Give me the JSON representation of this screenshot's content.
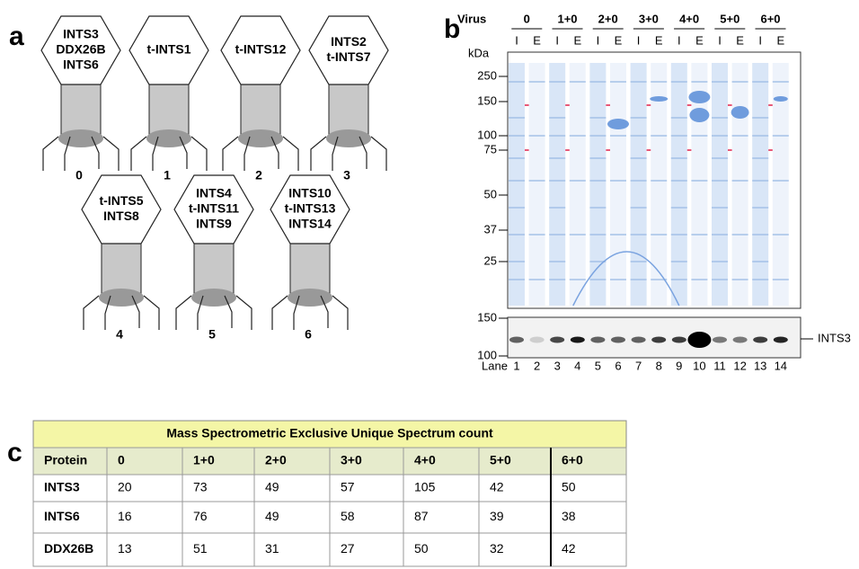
{
  "panel_labels": [
    "a",
    "b",
    "c"
  ],
  "viruses": [
    {
      "lines": [
        "INTS3",
        "DDX26B",
        "INTS6"
      ],
      "number": "0"
    },
    {
      "lines": [
        "t-INTS1"
      ],
      "number": "1"
    },
    {
      "lines": [
        "t-INTS12"
      ],
      "number": "2"
    },
    {
      "lines": [
        "INTS2",
        "t-INTS7"
      ],
      "number": "3"
    },
    {
      "lines": [
        "t-INTS5",
        "INTS8"
      ],
      "number": "4"
    },
    {
      "lines": [
        "INTS4",
        "t-INTS11",
        "INTS9"
      ],
      "number": "5"
    },
    {
      "lines": [
        "INTS10",
        "t-INTS13",
        "INTS14"
      ],
      "number": "6"
    }
  ],
  "gel": {
    "virus_label": "Virus",
    "groups": [
      "0",
      "1+0",
      "2+0",
      "3+0",
      "4+0",
      "5+0",
      "6+0"
    ],
    "lane_types": [
      "I",
      "E"
    ],
    "kda_label": "kDa",
    "markers": [
      "250",
      "150",
      "100",
      "75",
      "50",
      "37",
      "25"
    ],
    "blot_markers": [
      "150",
      "100"
    ],
    "blot_label": "INTS3",
    "lane_label": "Lane",
    "lanes": [
      "1",
      "2",
      "3",
      "4",
      "5",
      "6",
      "7",
      "8",
      "9",
      "10",
      "11",
      "12",
      "13",
      "14"
    ]
  },
  "table": {
    "title": "Mass Spectrometric Exclusive Unique Spectrum count",
    "header": [
      "Protein",
      "0",
      "1+0",
      "2+0",
      "3+0",
      "4+0",
      "5+0",
      "6+0"
    ],
    "rows": [
      [
        "INTS3",
        "20",
        "73",
        "49",
        "57",
        "105",
        "42",
        "50"
      ],
      [
        "INTS6",
        "16",
        "76",
        "49",
        "58",
        "87",
        "39",
        "38"
      ],
      [
        "DDX26B",
        "13",
        "51",
        "31",
        "27",
        "50",
        "32",
        "42"
      ]
    ]
  }
}
